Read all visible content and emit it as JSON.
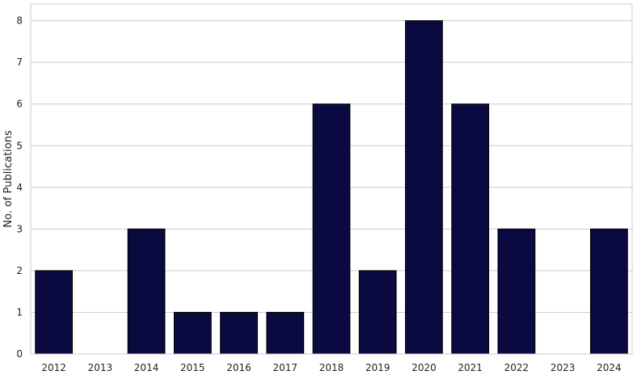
{
  "chart_data": {
    "type": "bar",
    "categories": [
      "2012",
      "2013",
      "2014",
      "2015",
      "2016",
      "2017",
      "2018",
      "2019",
      "2020",
      "2021",
      "2022",
      "2023",
      "2024"
    ],
    "values": [
      2,
      0,
      3,
      1,
      1,
      1,
      6,
      2,
      8,
      6,
      3,
      0,
      3
    ],
    "title": "",
    "xlabel": "",
    "ylabel": "No. of Publications",
    "ylim": [
      0,
      8.4
    ],
    "yticks": [
      0,
      1,
      2,
      3,
      4,
      5,
      6,
      7,
      8
    ],
    "grid": "horizontal",
    "legend": "none",
    "colors": {
      "bar": "#0a0a40",
      "grid": "#cccccc",
      "frame": "#cccccc"
    }
  }
}
